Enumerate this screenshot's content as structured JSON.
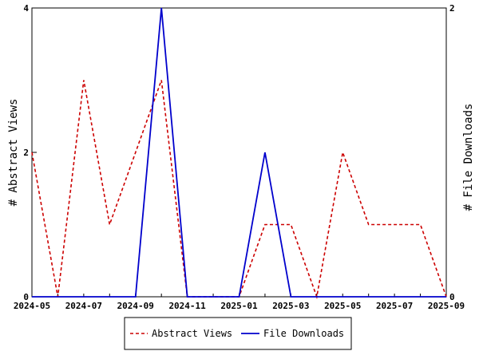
{
  "chart_data": {
    "type": "line",
    "x_ticks": [
      "2024-05",
      "2024-07",
      "2024-09",
      "2024-11",
      "2025-01",
      "2025-03",
      "2025-05",
      "2025-07",
      "2025-09"
    ],
    "x": [
      "2024-05",
      "2024-06",
      "2024-07",
      "2024-08",
      "2024-09",
      "2024-10",
      "2024-11",
      "2024-12",
      "2025-01",
      "2025-02",
      "2025-03",
      "2025-04",
      "2025-05",
      "2025-06",
      "2025-07",
      "2025-08",
      "2025-09"
    ],
    "ylabel_left": "# Abstract Views",
    "ylabel_right": "# File Downloads",
    "ylim_left": [
      0,
      4
    ],
    "ylim_right": [
      0,
      2
    ],
    "yticks_left": [
      "0",
      "2",
      "4"
    ],
    "yticks_right": [
      "0",
      "2"
    ],
    "grid": false,
    "legend_position": "bottom",
    "series": [
      {
        "name": "Abstract Views",
        "axis": "left",
        "color": "#cc0000",
        "style": "dashed",
        "values": [
          2,
          0,
          3,
          1,
          2,
          3,
          0,
          0,
          0,
          1,
          1,
          0,
          2,
          1,
          1,
          1,
          0
        ]
      },
      {
        "name": "File Downloads",
        "axis": "right",
        "color": "#0000cc",
        "style": "solid",
        "values": [
          0,
          0,
          0,
          0,
          0,
          2,
          0,
          0,
          0,
          1,
          0,
          0,
          0,
          0,
          0,
          0,
          0
        ]
      }
    ]
  }
}
